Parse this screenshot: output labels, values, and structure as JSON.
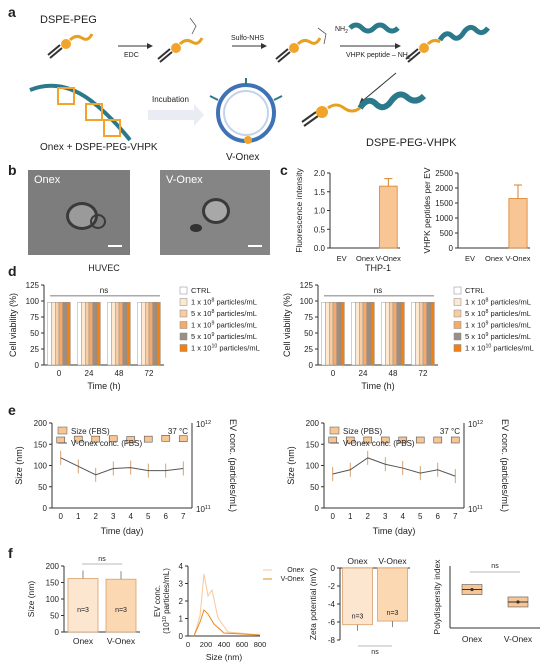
{
  "panels": {
    "a": "a",
    "b": "b",
    "c": "c",
    "d": "d",
    "e": "e",
    "f": "f"
  },
  "scheme": {
    "dspe_peg": "DSPE-PEG",
    "edc": "EDC",
    "sulfo_nhs": "Sulfo-NHS",
    "nh2": "NH",
    "vhpk_step": "VHPK peptide – NH",
    "incubation": "Incubation",
    "onex_mix": "Onex + DSPE-PEG-VHPK",
    "v_onex": "V-Onex",
    "product": "DSPE-PEG-VHPK"
  },
  "micrographs": {
    "left": "Onex",
    "right": "V-Onex"
  },
  "panel_c": {
    "left": {
      "ylabel": "Fluorescence intensity",
      "yticks": [
        "0.0",
        "0.5",
        "1.0",
        "1.5",
        "2.0"
      ],
      "categories": [
        "EV",
        "Onex",
        "V-Onex"
      ],
      "values": [
        0,
        0,
        1.65
      ],
      "errors": [
        0,
        0,
        0.2
      ],
      "ylim": [
        0,
        2.0
      ]
    },
    "right": {
      "ylabel": "VHPK peptides per EV",
      "yticks": [
        "0",
        "500",
        "1000",
        "1500",
        "2000",
        "2500"
      ],
      "categories": [
        "EV",
        "Onex",
        "V-Onex"
      ],
      "values": [
        0,
        0,
        1650
      ],
      "errors": [
        0,
        0,
        450
      ],
      "ylim": [
        0,
        2500
      ]
    }
  },
  "panel_d": {
    "ylabel": "Cell viability (%)",
    "xlabel": "Time (h)",
    "yticks": [
      "0",
      "25",
      "50",
      "75",
      "100",
      "125"
    ],
    "xticks": [
      "0",
      "24",
      "48",
      "72"
    ],
    "ns": "ns",
    "left_title": "HUVEC",
    "right_title": "THP-1",
    "legend": [
      "CTRL",
      "1 x 10",
      "5 x 10",
      "1 x 10",
      "5 x 10",
      "1 x 10"
    ],
    "legend_exp": [
      "",
      "8",
      "8",
      "9",
      "9",
      "10"
    ],
    "legend_unit": "particles/mL",
    "colors": [
      "#ffffff",
      "#fde8d2",
      "#f8cca4",
      "#f4aa6d",
      "#9a8f86",
      "#f07f14"
    ]
  },
  "panel_e": {
    "ylabel": "Size (nm)",
    "y2label": "EV conc. (particles/mL)",
    "y2top": "10",
    "y2top_exp": "12",
    "y2bottom": "10",
    "y2bottom_exp": "11",
    "xlabel": "Time (day)",
    "yticks": [
      "0",
      "50",
      "100",
      "150",
      "200"
    ],
    "xticks": [
      "0",
      "1",
      "2",
      "3",
      "4",
      "5",
      "6",
      "7"
    ],
    "temperature": "37 °C",
    "left": {
      "legend_size": "Size (FBS)",
      "legend_conc": "V-Onex conc. (FBS)",
      "size": [
        160,
        162,
        162,
        163,
        161,
        162,
        164,
        163
      ],
      "conc": [
        118,
        98,
        78,
        93,
        95,
        88,
        88,
        93
      ]
    },
    "right": {
      "legend_size": "Size (PBS)",
      "legend_conc": "V-Onex conc. (PBS)",
      "size": [
        160,
        160,
        160,
        160,
        160,
        160,
        160,
        160
      ],
      "conc": [
        80,
        90,
        118,
        103,
        94,
        82,
        90,
        75
      ]
    }
  },
  "panel_f": {
    "size_bar": {
      "ylabel": "Size (nm)",
      "yticks": [
        "0",
        "50",
        "100",
        "150",
        "200"
      ],
      "categories": [
        "Onex",
        "V-Onex"
      ],
      "values": [
        162,
        160
      ],
      "n": [
        "n=3",
        "n=3"
      ],
      "ns": "ns"
    },
    "conc_curve": {
      "ylabel": "EV conc.",
      "ylabel2": "(10",
      "ylabel2_exp": "10",
      "ylabel2_unit": " particles/mL)",
      "xlabel": "Size (nm)",
      "yticks": [
        "0",
        "1",
        "2",
        "3",
        "4"
      ],
      "xticks": [
        "0",
        "200",
        "400",
        "600",
        "800"
      ],
      "legend": [
        "Onex",
        "V-Onex"
      ]
    },
    "zeta": {
      "ylabel": "Zeta potential (mV)",
      "yticks": [
        "0",
        "-2",
        "-4",
        "-6",
        "-8"
      ],
      "categories": [
        "Onex",
        "V-Onex"
      ],
      "values": [
        -6.3,
        -5.9
      ],
      "n": [
        "n=3",
        "n=3"
      ],
      "ns": "ns"
    },
    "pdi": {
      "ylabel": "Polydispersity index",
      "categories": [
        "Onex",
        "V-Onex"
      ],
      "ns": "ns"
    }
  }
}
